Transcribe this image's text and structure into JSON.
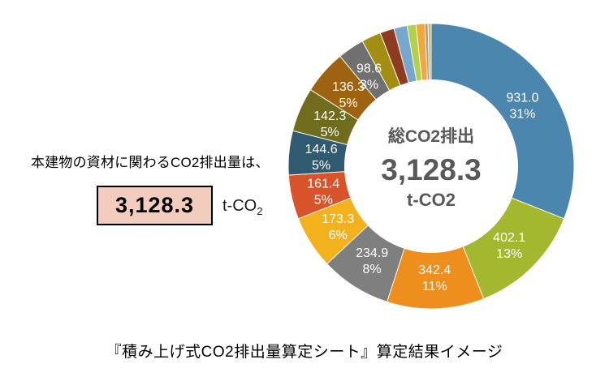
{
  "left_panel": {
    "intro_text": "本建物の資材に関わるCO2排出量は、",
    "total_value": "3,128.3",
    "unit_prefix": "t-CO",
    "unit_sub": "2",
    "box_fill": "#F2CDBD",
    "box_border": "#000000"
  },
  "donut_center": {
    "line1": "総CO2排出",
    "line2": "3,128.3",
    "line3": "t-CO2",
    "text_color": "#595959"
  },
  "caption": "『積み上げ式CO2排出量算定シート』算定結果イメージ",
  "chart_data": {
    "type": "pie",
    "subtype": "donut",
    "title": "総CO2排出",
    "center_total_label": "3,128.3",
    "center_unit": "t-CO2",
    "total": 3128.3,
    "start_angle_deg": 0,
    "direction": "clockwise",
    "hole_ratio": 0.61,
    "legend": "none",
    "label_format": "value + percent, white, inside slices",
    "segments": [
      {
        "value": 931.0,
        "value_label": "931.0",
        "pct_label": "31%",
        "pct": 31,
        "color": "#4A86AD"
      },
      {
        "value": 402.1,
        "value_label": "402.1",
        "pct_label": "13%",
        "pct": 13,
        "color": "#A3B82F"
      },
      {
        "value": 342.4,
        "value_label": "342.4",
        "pct_label": "11%",
        "pct": 11,
        "color": "#EE8E1C"
      },
      {
        "value": 234.9,
        "value_label": "234.9",
        "pct_label": "8%",
        "pct": 8,
        "color": "#7F7F7F"
      },
      {
        "value": 173.3,
        "value_label": "173.3",
        "pct_label": "6%",
        "pct": 6,
        "color": "#F3B11B"
      },
      {
        "value": 161.4,
        "value_label": "161.4",
        "pct_label": "5%",
        "pct": 5,
        "color": "#D8532A"
      },
      {
        "value": 144.6,
        "value_label": "144.6",
        "pct_label": "5%",
        "pct": 5,
        "color": "#2F5A70"
      },
      {
        "value": 142.3,
        "value_label": "142.3",
        "pct_label": "5%",
        "pct": 5,
        "color": "#6F6C1E"
      },
      {
        "value": 136.3,
        "value_label": "136.3",
        "pct_label": "5%",
        "pct": 5,
        "color": "#9E6310"
      },
      {
        "value": 98.6,
        "value_label": "98.6",
        "pct_label": "3%",
        "pct": 3,
        "color": "#707070"
      },
      {
        "value": null,
        "value_label": "",
        "pct_label": "",
        "pct": 2.2,
        "color": "#A28E12",
        "estimated": true
      },
      {
        "value": null,
        "value_label": "",
        "pct_label": "",
        "pct": 1.6,
        "color": "#8E3B20",
        "estimated": true
      },
      {
        "value": null,
        "value_label": "",
        "pct_label": "",
        "pct": 1.5,
        "color": "#76A8CE",
        "estimated": true
      },
      {
        "value": null,
        "value_label": "",
        "pct_label": "",
        "pct": 1.0,
        "color": "#B2D14B",
        "estimated": true
      },
      {
        "value": null,
        "value_label": "",
        "pct_label": "",
        "pct": 1.0,
        "color": "#F3A73A",
        "estimated": true
      },
      {
        "value": null,
        "value_label": "",
        "pct_label": "",
        "pct": 0.35,
        "color": "#A0A096",
        "estimated": true
      },
      {
        "value": null,
        "value_label": "",
        "pct_label": "",
        "pct": 0.35,
        "color": "#C8B784",
        "estimated": true
      }
    ]
  }
}
